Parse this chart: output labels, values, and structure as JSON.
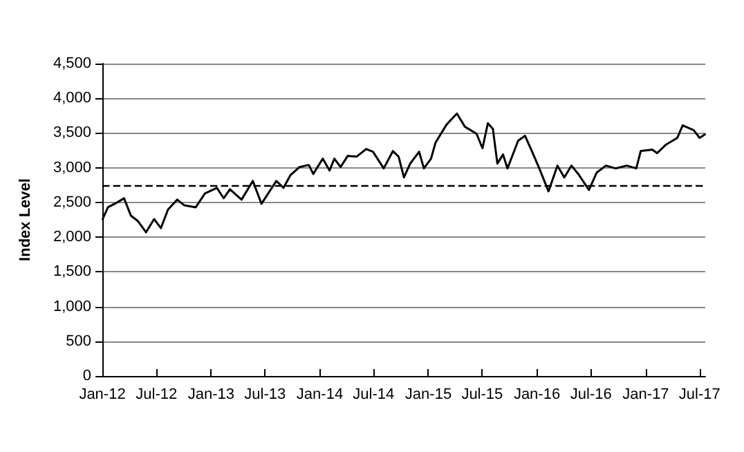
{
  "chart_data": {
    "type": "line",
    "ylabel": "Index Level",
    "grid": "y",
    "marker": "none",
    "line_style": "solid",
    "xlim": [
      "2012-01-01",
      "2017-07-20"
    ],
    "xticks": [
      {
        "value": "2012-01-01",
        "label": "Jan-12"
      },
      {
        "value": "2012-07-01",
        "label": "Jul-12"
      },
      {
        "value": "2013-01-01",
        "label": "Jan-13"
      },
      {
        "value": "2013-07-01",
        "label": "Jul-13"
      },
      {
        "value": "2014-01-01",
        "label": "Jan-14"
      },
      {
        "value": "2014-07-01",
        "label": "Jul-14"
      },
      {
        "value": "2015-01-01",
        "label": "Jan-15"
      },
      {
        "value": "2015-07-01",
        "label": "Jul-15"
      },
      {
        "value": "2016-01-01",
        "label": "Jan-16"
      },
      {
        "value": "2016-07-01",
        "label": "Jul-16"
      },
      {
        "value": "2017-01-01",
        "label": "Jan-17"
      },
      {
        "value": "2017-07-01",
        "label": "Jul-17"
      }
    ],
    "ylim": [
      0,
      4500
    ],
    "yticks": [
      0,
      500,
      {
        "value": 1000,
        "label": "1,000"
      },
      {
        "value": 1500,
        "label": "1,500"
      },
      {
        "value": 2000,
        "label": "2,000"
      },
      {
        "value": 2500,
        "label": "2,500"
      },
      {
        "value": 3000,
        "label": "3,000"
      },
      {
        "value": 3500,
        "label": "3,500"
      },
      {
        "value": 4000,
        "label": "4,000"
      },
      {
        "value": 4500,
        "label": "4,500"
      }
    ],
    "ref_lines": [
      {
        "axis": "y",
        "value": 2750,
        "color": "#000000",
        "line_style": "dashed"
      }
    ],
    "x": [
      "2012-01-02",
      "2012-01-20",
      "2012-02-20",
      "2012-03-14",
      "2012-04-06",
      "2012-04-30",
      "2012-05-27",
      "2012-06-23",
      "2012-07-16",
      "2012-08-09",
      "2012-09-09",
      "2012-10-02",
      "2012-11-10",
      "2012-12-11",
      "2013-01-20",
      "2013-02-12",
      "2013-03-05",
      "2013-04-13",
      "2013-05-21",
      "2013-06-19",
      "2013-08-08",
      "2013-09-01",
      "2013-09-24",
      "2013-10-25",
      "2013-11-25",
      "2013-12-10",
      "2014-01-11",
      "2014-02-03",
      "2014-02-19",
      "2014-03-12",
      "2014-04-05",
      "2014-05-05",
      "2014-06-06",
      "2014-06-29",
      "2014-08-04",
      "2014-09-04",
      "2014-09-23",
      "2014-10-11",
      "2014-11-01",
      "2014-12-01",
      "2014-12-17",
      "2015-01-10",
      "2015-01-25",
      "2015-03-03",
      "2015-04-07",
      "2015-05-04",
      "2015-06-12",
      "2015-07-02",
      "2015-07-20",
      "2015-08-06",
      "2015-08-21",
      "2015-09-09",
      "2015-09-24",
      "2015-10-30",
      "2015-11-22",
      "2015-12-16",
      "2016-01-09",
      "2016-02-09",
      "2016-03-10",
      "2016-04-02",
      "2016-04-26",
      "2016-05-19",
      "2016-06-24",
      "2016-07-20",
      "2016-08-20",
      "2016-09-21",
      "2016-10-29",
      "2016-11-30",
      "2016-12-15",
      "2017-01-23",
      "2017-02-08",
      "2017-03-09",
      "2017-04-17",
      "2017-05-05",
      "2017-06-11",
      "2017-07-01",
      "2017-07-19"
    ],
    "series": [
      {
        "color": "#000000",
        "values": [
          2260,
          2430,
          2500,
          2560,
          2310,
          2230,
          2070,
          2260,
          2130,
          2400,
          2540,
          2460,
          2430,
          2630,
          2710,
          2560,
          2690,
          2540,
          2810,
          2480,
          2810,
          2710,
          2890,
          3010,
          3040,
          2910,
          3130,
          2960,
          3130,
          3010,
          3170,
          3160,
          3270,
          3230,
          2990,
          3240,
          3160,
          2860,
          3060,
          3230,
          2990,
          3130,
          3360,
          3620,
          3780,
          3590,
          3490,
          3280,
          3640,
          3560,
          3060,
          3190,
          2990,
          3390,
          3460,
          3230,
          2990,
          2660,
          3030,
          2860,
          3030,
          2910,
          2680,
          2930,
          3030,
          2990,
          3030,
          2990,
          3240,
          3260,
          3210,
          3330,
          3430,
          3610,
          3540,
          3430,
          3480
        ]
      }
    ]
  }
}
